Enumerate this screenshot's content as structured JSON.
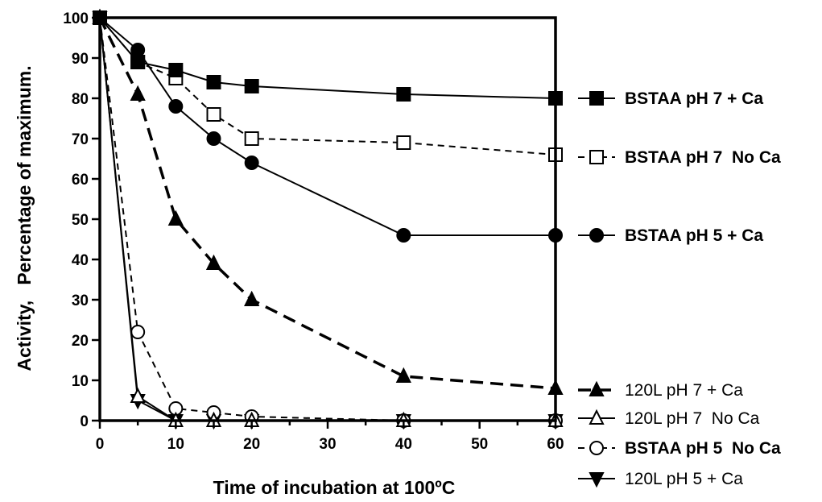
{
  "chart_data": {
    "type": "line",
    "title": "",
    "xlabel": "Time of incubation at 100ºC",
    "ylabel": "Activity,   Percentage of maximum.",
    "xlim": [
      0,
      60
    ],
    "ylim": [
      0,
      100
    ],
    "xticks": [
      "0",
      "10",
      "20",
      "30",
      "40",
      "50",
      "60"
    ],
    "yticks": [
      "0",
      "10",
      "20",
      "30",
      "40",
      "50",
      "60",
      "70",
      "80",
      "90",
      "100"
    ],
    "grid": false,
    "series": [
      {
        "name": "BSTAA pH 7 + Ca",
        "bold": true,
        "marker": "square-filled",
        "line": "solid",
        "x": [
          0,
          5,
          10,
          15,
          20,
          40,
          60
        ],
        "y": [
          100,
          89,
          87,
          84,
          83,
          81,
          80
        ]
      },
      {
        "name": "BSTAA pH 7  No Ca",
        "bold": true,
        "marker": "square-open",
        "line": "dashed",
        "x": [
          0,
          5,
          10,
          15,
          20,
          40,
          60
        ],
        "y": [
          100,
          89,
          85,
          76,
          70,
          69,
          66
        ]
      },
      {
        "name": "BSTAA pH 5 + Ca",
        "bold": true,
        "marker": "circle-filled",
        "line": "solid",
        "x": [
          0,
          5,
          10,
          15,
          20,
          40,
          60
        ],
        "y": [
          100,
          92,
          78,
          70,
          64,
          46,
          46
        ]
      },
      {
        "name": "120L pH 7 + Ca",
        "bold": false,
        "marker": "triangle-up-filled",
        "line": "dashed-thick",
        "x": [
          0,
          5,
          10,
          15,
          20,
          40,
          60
        ],
        "y": [
          100,
          81,
          50,
          39,
          30,
          11,
          8
        ]
      },
      {
        "name": "120L pH 7  No Ca",
        "bold": false,
        "marker": "triangle-up-open",
        "line": "solid",
        "x": [
          0,
          5,
          10,
          15,
          20,
          40,
          60
        ],
        "y": [
          100,
          6,
          0,
          0,
          0,
          0,
          0
        ]
      },
      {
        "name": "BSTAA pH 5  No Ca",
        "bold": true,
        "marker": "circle-open",
        "line": "dashed",
        "x": [
          0,
          5,
          10,
          15,
          20,
          40,
          60
        ],
        "y": [
          100,
          22,
          3,
          2,
          1,
          0,
          0
        ]
      },
      {
        "name": "120L pH 5 + Ca",
        "bold": false,
        "marker": "triangle-down-filled",
        "line": "solid",
        "x": [
          0,
          5,
          10,
          15,
          20,
          40,
          60
        ],
        "y": [
          100,
          5,
          0,
          0,
          0,
          0,
          0
        ]
      }
    ]
  }
}
